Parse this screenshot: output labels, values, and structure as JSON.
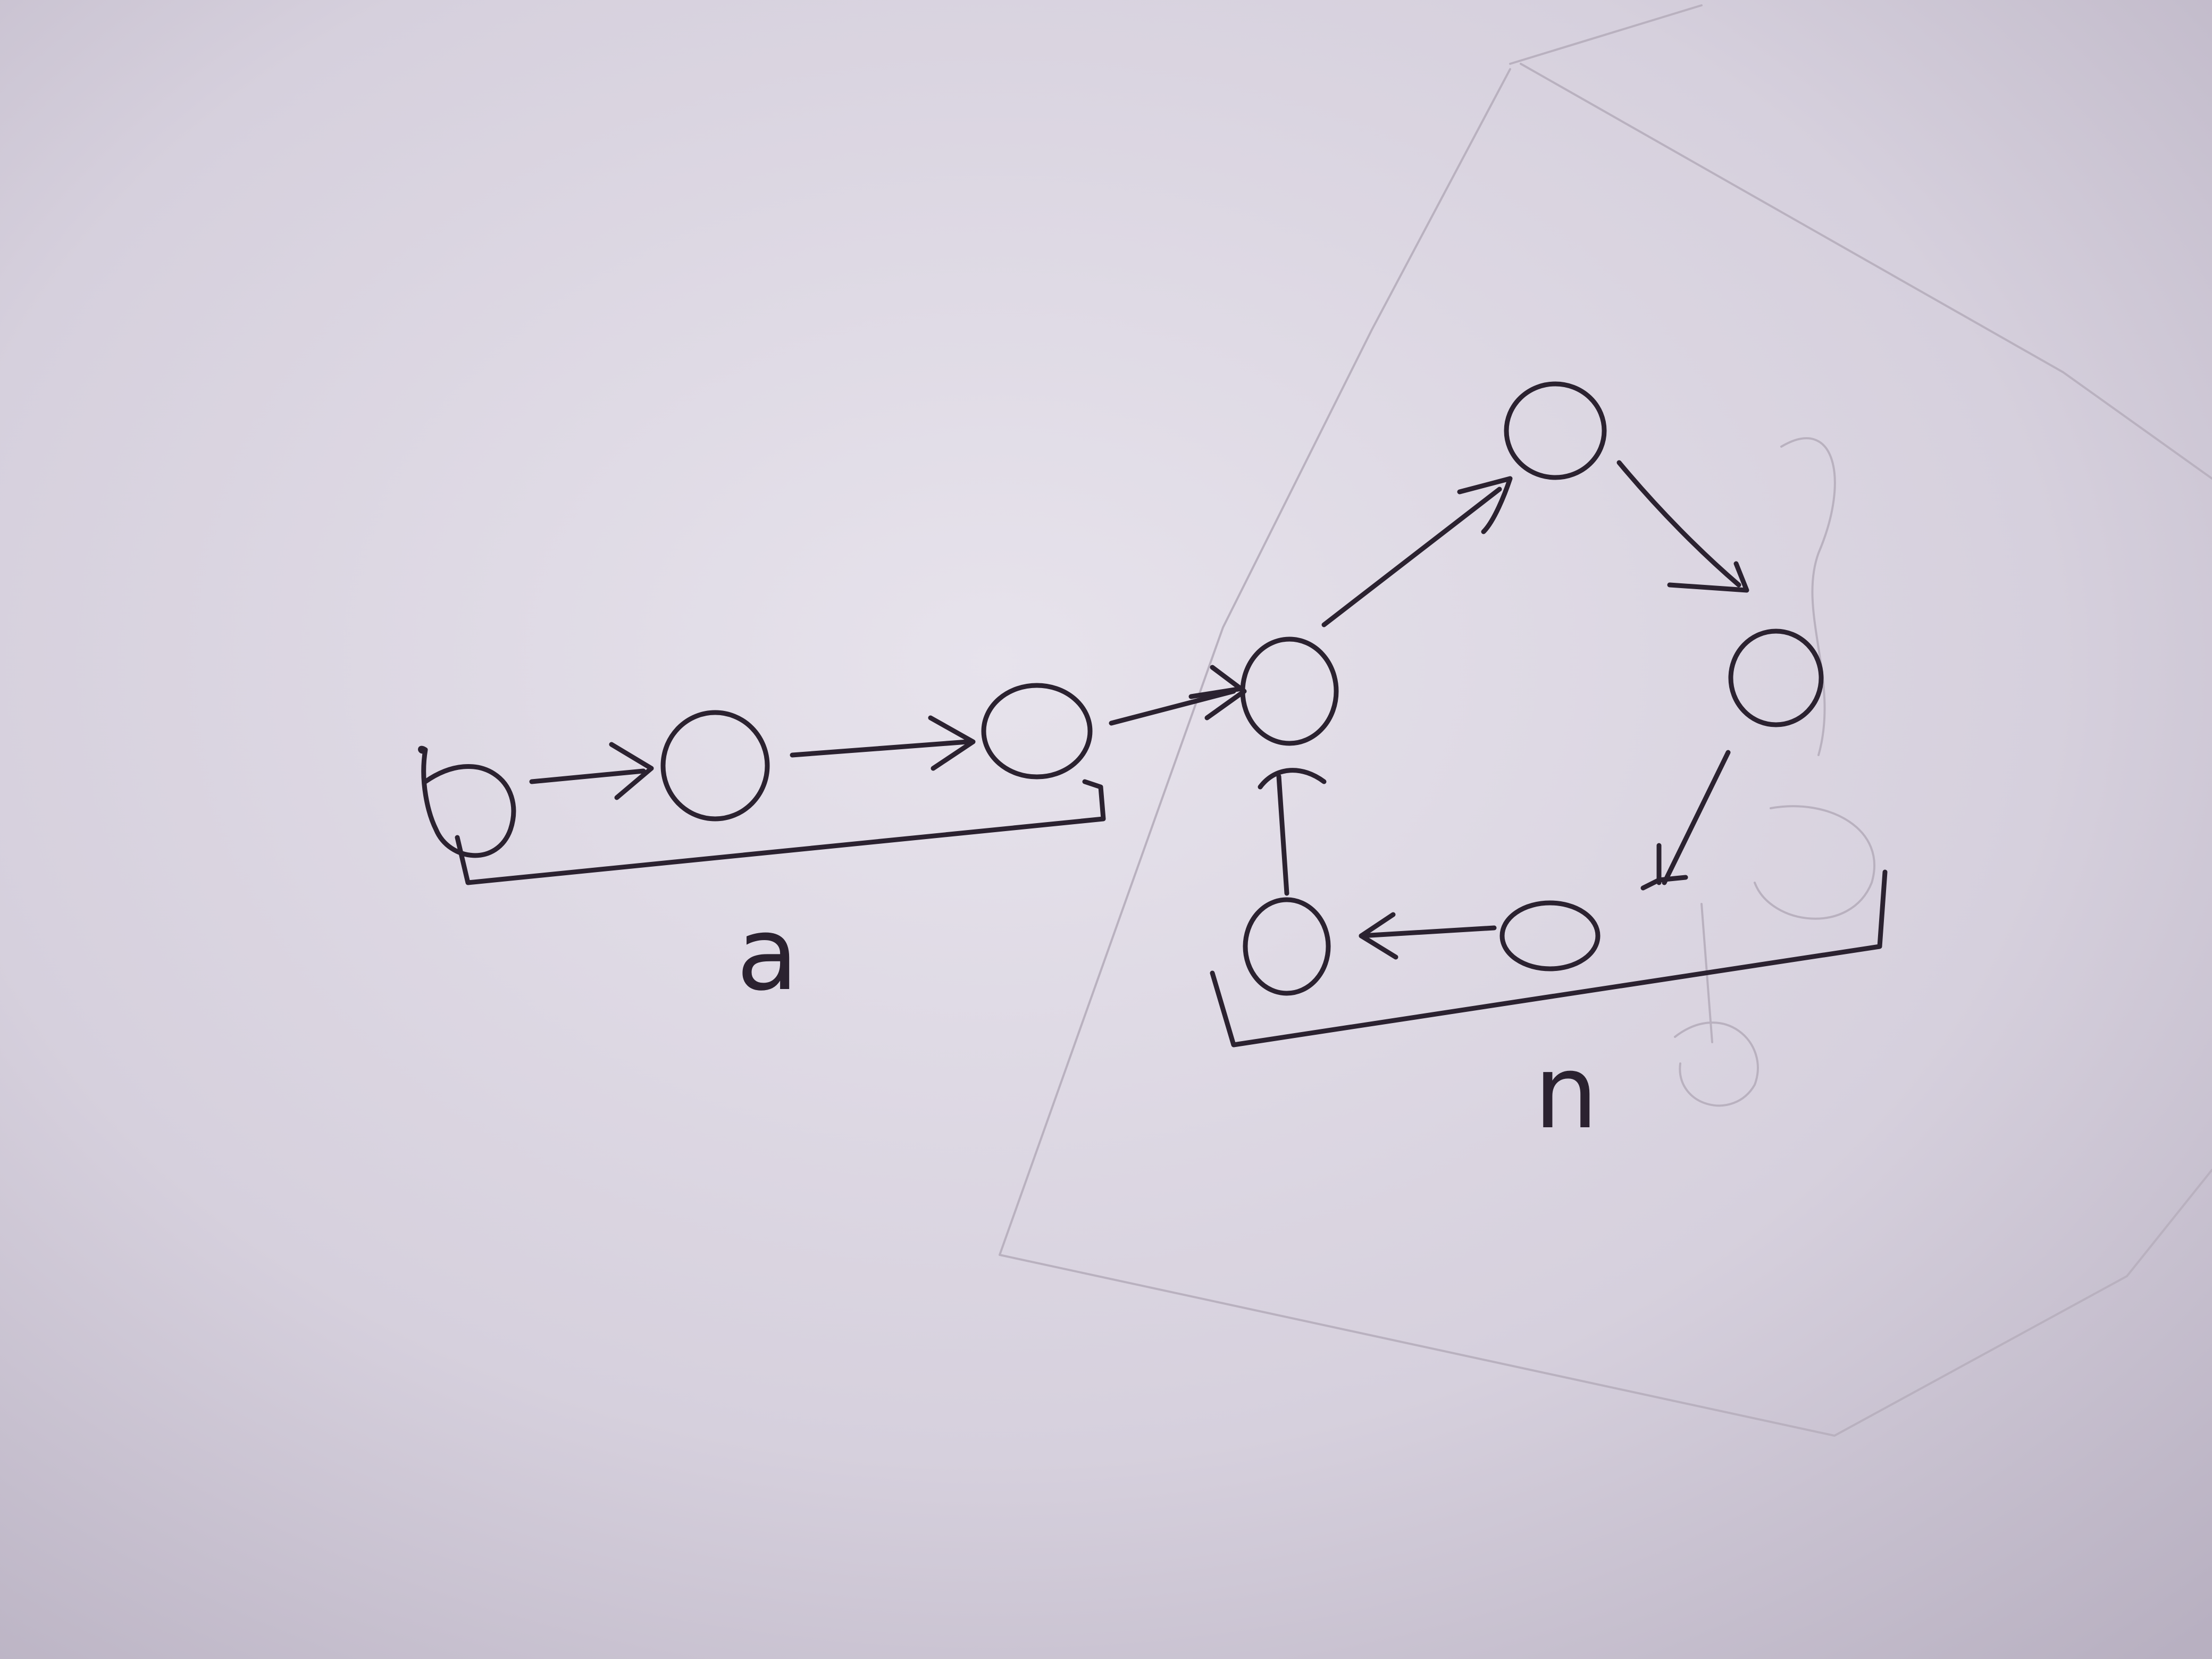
{
  "diagram": {
    "nodes": [
      {
        "id": "n1",
        "kind": "tail"
      },
      {
        "id": "n2",
        "kind": "tail"
      },
      {
        "id": "n3",
        "kind": "tail"
      },
      {
        "id": "n4",
        "kind": "cycle-entry"
      },
      {
        "id": "n5",
        "kind": "cycle"
      },
      {
        "id": "n6",
        "kind": "cycle"
      },
      {
        "id": "n7",
        "kind": "cycle"
      },
      {
        "id": "n8",
        "kind": "cycle"
      }
    ],
    "edges": [
      {
        "from": "n1",
        "to": "n2"
      },
      {
        "from": "n2",
        "to": "n3"
      },
      {
        "from": "n3",
        "to": "n4"
      },
      {
        "from": "n4",
        "to": "n5"
      },
      {
        "from": "n5",
        "to": "n6"
      },
      {
        "from": "n6",
        "to": "n7"
      },
      {
        "from": "n7",
        "to": "n8"
      },
      {
        "from": "n8",
        "to": "n4"
      }
    ],
    "braces": [
      {
        "label": "a",
        "covers": [
          "n1",
          "n2",
          "n3"
        ]
      },
      {
        "label": "n",
        "covers": [
          "n8",
          "n7"
        ]
      }
    ]
  }
}
